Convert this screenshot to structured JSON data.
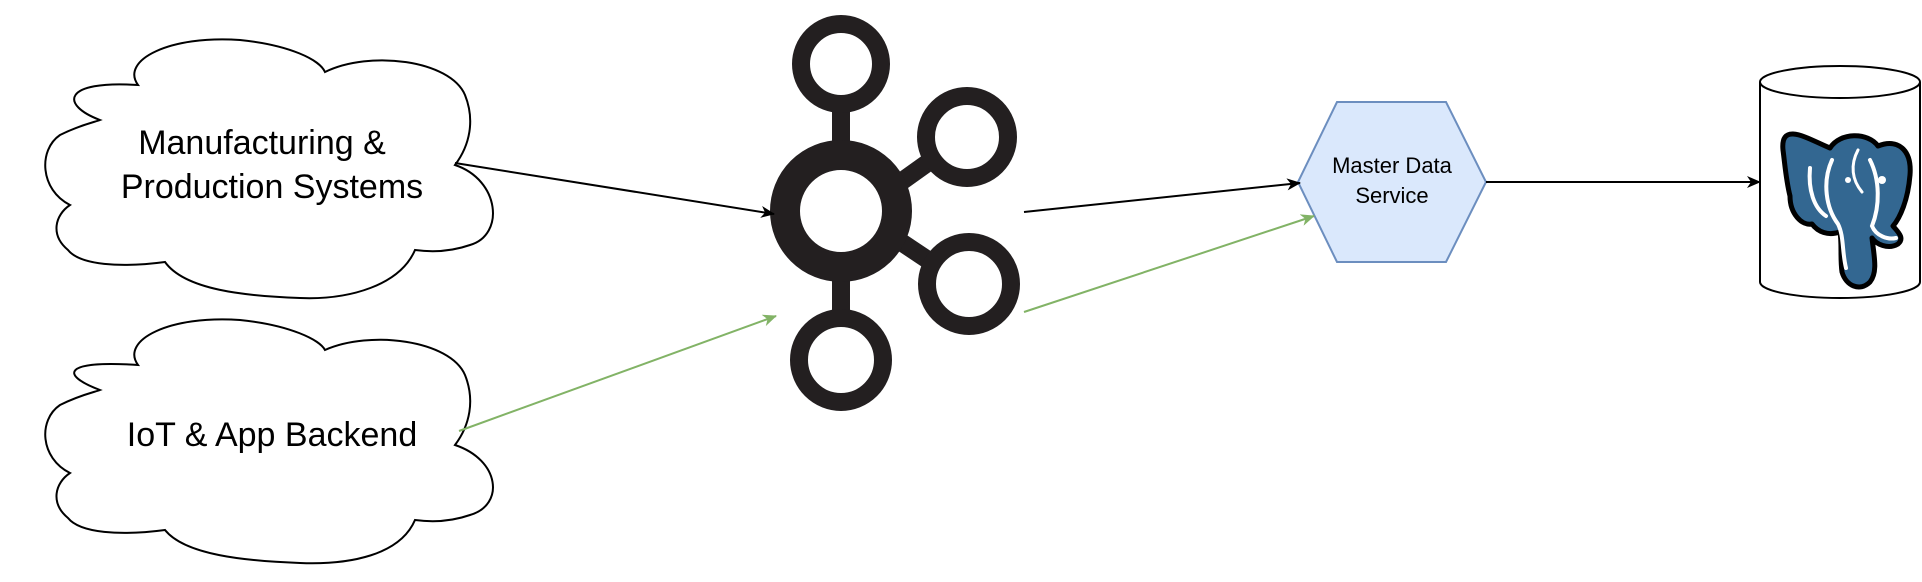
{
  "nodes": {
    "manufacturing": {
      "label_line1": "Manufacturing &",
      "label_line2": "Production Systems"
    },
    "iot": {
      "label": "IoT & App Backend"
    },
    "kafka": {
      "icon": "kafka-icon"
    },
    "master_data_service": {
      "label_line1": "Master Data",
      "label_line2": "Service",
      "fill": "#dae8fc",
      "stroke": "#6c8ebf"
    },
    "database": {
      "icon": "postgresql-elephant-icon",
      "brand_color": "#336791"
    }
  },
  "edges": [
    {
      "from": "manufacturing",
      "to": "kafka",
      "color": "#000000"
    },
    {
      "from": "iot",
      "to": "kafka",
      "color": "#82b366"
    },
    {
      "from": "kafka",
      "to": "master_data_service",
      "color": "#000000"
    },
    {
      "from": "kafka",
      "to": "master_data_service",
      "color": "#82b366"
    },
    {
      "from": "master_data_service",
      "to": "database",
      "color": "#000000"
    }
  ]
}
